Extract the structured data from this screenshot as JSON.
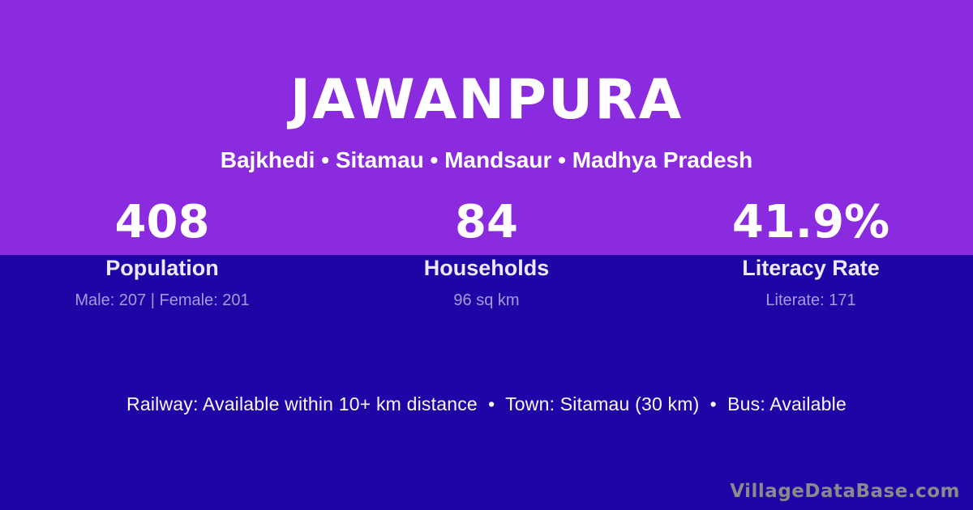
{
  "colors": {
    "top_background": "#8B2BDF",
    "bottom_background": "#1E05A6",
    "text_primary": "#FFFFFF",
    "text_label": "#EDE9F9",
    "text_muted": "#A89BD8",
    "watermark": "#8A8A8A"
  },
  "header": {
    "title": "JAWANPURA",
    "subtitle": "Bajkhedi • Sitamau • Mandsaur • Madhya Pradesh"
  },
  "stats": [
    {
      "value": "408",
      "label": "Population",
      "detail": "Male: 207 | Female: 201"
    },
    {
      "value": "84",
      "label": "Households",
      "detail": "96 sq km"
    },
    {
      "value": "41.9%",
      "label": "Literacy Rate",
      "detail": "Literate: 171"
    }
  ],
  "footer": {
    "info": "Railway: Available within 10+ km distance  •  Town: Sitamau (30 km)  •  Bus: Available",
    "watermark": "VillageDataBase.com"
  }
}
